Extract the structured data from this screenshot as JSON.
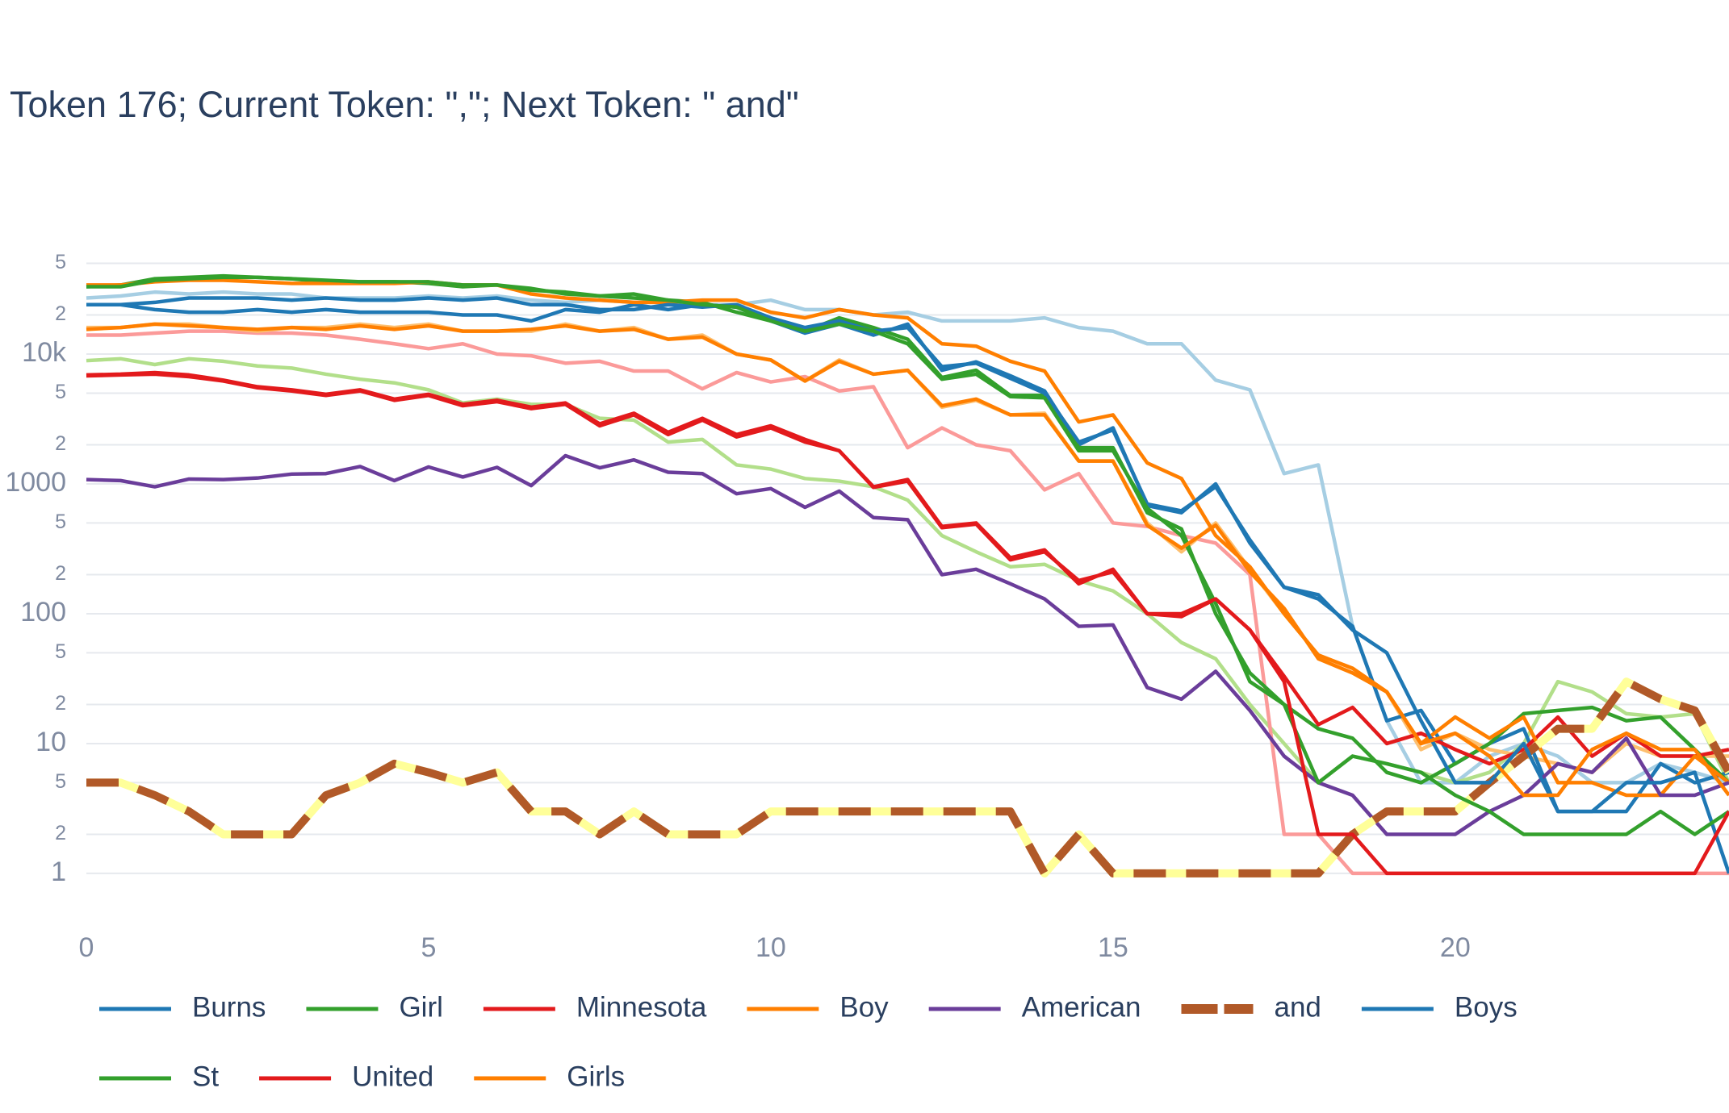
{
  "chart_data": {
    "type": "line",
    "title": "Token 176; Current Token: \",\"; Next Token: \" and\"",
    "x": [
      0,
      0.5,
      1,
      1.5,
      2,
      2.5,
      3,
      3.5,
      4,
      4.5,
      5,
      5.5,
      6,
      6.5,
      7,
      7.5,
      8,
      8.5,
      9,
      9.5,
      10,
      10.5,
      11,
      11.5,
      12,
      12.5,
      13,
      13.5,
      14,
      14.5,
      15,
      15.5,
      16,
      16.5,
      17,
      17.5,
      18,
      18.5,
      19,
      19.5,
      20,
      20.5,
      21,
      21.5,
      22,
      22.5,
      23,
      23.5,
      24
    ],
    "xlim": [
      0,
      24
    ],
    "xticks": [
      0,
      5,
      10,
      15,
      20
    ],
    "ylim": [
      0.4,
      100000
    ],
    "log_y": true,
    "grid": true,
    "yticks": [
      1,
      2,
      5,
      10,
      {
        "value": 20,
        "label": "2"
      },
      {
        "value": 50,
        "label": "5"
      },
      100,
      {
        "value": 200,
        "label": "2"
      },
      {
        "value": 500,
        "label": "5"
      },
      1000,
      {
        "value": 2000,
        "label": "2"
      },
      {
        "value": 5000,
        "label": "5"
      },
      {
        "value": 10000,
        "label": "10k"
      },
      {
        "value": 20000,
        "label": "2"
      },
      {
        "value": 50000,
        "label": "5"
      }
    ],
    "series": [
      {
        "color": "#a6cee3",
        "values": [
          27000,
          28000,
          30000,
          29000,
          30000,
          29000,
          29000,
          27000,
          27000,
          27000,
          28000,
          27000,
          28000,
          26000,
          25000,
          26000,
          25000,
          25000,
          24000,
          24000,
          26000,
          22000,
          22000,
          20000,
          21000,
          18000,
          18000,
          18000,
          19000,
          16000,
          15000,
          12000,
          12000,
          6300,
          5300,
          1200,
          1400,
          80,
          15,
          5,
          5,
          8,
          10,
          8,
          5,
          5,
          7,
          6,
          5
        ]
      },
      {
        "color": "#b2df8a",
        "values": [
          8900,
          9200,
          8300,
          9200,
          8800,
          8100,
          7800,
          7000,
          6400,
          6000,
          5300,
          4200,
          4500,
          4100,
          4100,
          3200,
          3100,
          2100,
          2200,
          1400,
          1300,
          1100,
          1050,
          950,
          750,
          400,
          300,
          230,
          240,
          180,
          150,
          100,
          60,
          45,
          20,
          10,
          5,
          8,
          7,
          6,
          5,
          6,
          10,
          30,
          25,
          17,
          16,
          17,
          5
        ]
      },
      {
        "color": "#fb9a99",
        "values": [
          14000,
          14000,
          14500,
          15000,
          15000,
          14500,
          14500,
          14000,
          13000,
          12000,
          11000,
          12000,
          10000,
          9700,
          8500,
          8800,
          7400,
          7400,
          5400,
          7200,
          6100,
          6700,
          5200,
          5600,
          1900,
          2700,
          2000,
          1800,
          900,
          1200,
          500,
          470,
          400,
          350,
          200,
          2,
          2,
          1,
          1,
          1,
          1,
          1,
          1,
          1,
          1,
          1,
          1,
          1,
          1
        ]
      },
      {
        "color": "#fdbf6f",
        "values": [
          16000,
          16000,
          17000,
          17000,
          16000,
          15000,
          16000,
          16000,
          17000,
          16000,
          17000,
          15000,
          15000,
          15000,
          17000,
          15000,
          16000,
          13000,
          14000,
          10000,
          9000,
          6200,
          9000,
          7000,
          7500,
          3900,
          4400,
          3400,
          3500,
          1500,
          1500,
          500,
          300,
          500,
          220,
          100,
          48,
          38,
          25,
          9,
          12,
          9,
          8,
          7,
          6,
          10,
          8,
          8,
          8
        ]
      },
      {
        "name": "Burns",
        "color": "#1f78b4",
        "values": [
          24000,
          24000,
          22000,
          21000,
          21000,
          22000,
          21000,
          22000,
          21000,
          21000,
          21000,
          20000,
          20000,
          18000,
          22000,
          21000,
          24000,
          22000,
          24000,
          23000,
          18000,
          14500,
          17000,
          14000,
          17000,
          7500,
          8700,
          6800,
          5200,
          2000,
          2700,
          680,
          600,
          1000,
          350,
          160,
          130,
          80,
          15,
          18,
          7,
          10,
          13,
          3,
          3,
          3,
          7,
          5,
          6
        ]
      },
      {
        "name": "Girl",
        "color": "#33a02c",
        "values": [
          33000,
          34000,
          38000,
          39000,
          40000,
          39000,
          38000,
          36000,
          36000,
          36000,
          35000,
          33000,
          34000,
          32000,
          29000,
          28000,
          29000,
          26000,
          25000,
          21000,
          18000,
          15000,
          19000,
          16000,
          13000,
          6600,
          7500,
          4800,
          4800,
          1900,
          1900,
          600,
          450,
          100,
          35,
          20,
          13,
          11,
          6,
          5,
          7,
          10,
          17,
          18,
          19,
          15,
          16,
          9,
          5
        ]
      },
      {
        "name": "Minnesota",
        "color": "#e31a1c",
        "values": [
          6900,
          7000,
          7200,
          6900,
          6300,
          5600,
          5300,
          4900,
          5300,
          4500,
          4900,
          4100,
          4400,
          3900,
          4200,
          2900,
          3500,
          2500,
          3200,
          2400,
          2800,
          2200,
          1800,
          950,
          1080,
          470,
          500,
          270,
          310,
          170,
          220,
          100,
          95,
          130,
          75,
          33,
          14,
          19,
          10,
          12,
          9,
          7,
          9,
          16,
          8,
          12,
          8,
          8,
          9
        ]
      },
      {
        "name": "Boy",
        "color": "#ff7f00",
        "values": [
          34000,
          34000,
          36000,
          37000,
          37000,
          36000,
          35000,
          35000,
          35000,
          35000,
          36000,
          34000,
          34000,
          29000,
          27000,
          26000,
          25000,
          25000,
          26000,
          26000,
          21000,
          19000,
          22000,
          20000,
          19000,
          12000,
          11500,
          8800,
          7400,
          3000,
          3400,
          1450,
          1100,
          400,
          230,
          100,
          48,
          38,
          25,
          10,
          16,
          11,
          16,
          5,
          5,
          4,
          4,
          8,
          5
        ]
      },
      {
        "name": "American",
        "color": "#6a3d9a",
        "values": [
          1080,
          1060,
          950,
          1090,
          1080,
          1110,
          1190,
          1200,
          1360,
          1060,
          1350,
          1130,
          1340,
          970,
          1650,
          1330,
          1530,
          1230,
          1200,
          840,
          920,
          660,
          880,
          550,
          530,
          200,
          220,
          170,
          130,
          80,
          82,
          27,
          22,
          36,
          18,
          8,
          5,
          4,
          2,
          2,
          2,
          3,
          4,
          7,
          6,
          11,
          4,
          4,
          5
        ]
      },
      {
        "name": "and",
        "color": "#b15928",
        "dash": true,
        "backing_color": "#ffff99",
        "values": [
          5,
          5,
          4,
          3,
          2,
          2,
          2,
          4,
          5,
          7,
          6,
          5,
          6,
          3,
          3,
          2,
          3,
          2,
          2,
          2,
          3,
          3,
          3,
          3,
          3,
          3,
          3,
          3,
          1,
          2,
          1,
          1,
          1,
          1,
          1,
          1,
          1,
          2,
          3,
          3,
          3,
          5,
          8,
          13,
          13,
          30,
          22,
          18,
          6
        ]
      },
      {
        "name": "Boys",
        "color": "#1f78b4",
        "values": [
          24000,
          24000,
          25000,
          27000,
          27000,
          27000,
          26000,
          27000,
          26000,
          26000,
          27000,
          26000,
          27000,
          24000,
          24000,
          22000,
          22000,
          24000,
          23000,
          24000,
          19000,
          16000,
          18000,
          15000,
          16000,
          8000,
          8500,
          6500,
          5000,
          2100,
          2600,
          700,
          620,
          950,
          370,
          160,
          140,
          75,
          50,
          15,
          5,
          5,
          10,
          3,
          3,
          5,
          5,
          6,
          1
        ]
      },
      {
        "name": "St",
        "color": "#33a02c",
        "values": [
          33000,
          33000,
          37000,
          38000,
          39000,
          39000,
          38000,
          37000,
          36000,
          36000,
          36000,
          34000,
          34000,
          31000,
          30000,
          28000,
          27000,
          26000,
          24000,
          23000,
          18000,
          15000,
          17000,
          15000,
          12000,
          6400,
          7000,
          4700,
          4600,
          1800,
          1800,
          650,
          400,
          120,
          30,
          20,
          5,
          8,
          7,
          6,
          4,
          3,
          2,
          2,
          2,
          2,
          3,
          2,
          3
        ]
      },
      {
        "name": "United",
        "color": "#e31a1c",
        "values": [
          6800,
          6900,
          7000,
          6700,
          6200,
          5500,
          5200,
          4800,
          5200,
          4400,
          4800,
          4000,
          4300,
          3800,
          4100,
          2800,
          3400,
          2400,
          3100,
          2300,
          2700,
          2100,
          1800,
          940,
          1050,
          460,
          490,
          260,
          300,
          180,
          210,
          100,
          100,
          130,
          75,
          30,
          2,
          2,
          1,
          1,
          1,
          1,
          1,
          1,
          1,
          1,
          1,
          1,
          3
        ]
      },
      {
        "name": "Girls",
        "color": "#ff7f00",
        "values": [
          15500,
          16000,
          17000,
          16500,
          16000,
          15500,
          16000,
          15500,
          16500,
          15500,
          16500,
          15000,
          15000,
          15500,
          16500,
          15000,
          15500,
          13000,
          13500,
          10000,
          9000,
          6200,
          8800,
          7000,
          7500,
          4000,
          4500,
          3400,
          3400,
          1500,
          1500,
          480,
          320,
          480,
          210,
          110,
          45,
          35,
          25,
          10,
          12,
          8,
          4,
          4,
          9,
          12,
          9,
          9,
          4
        ]
      }
    ]
  }
}
